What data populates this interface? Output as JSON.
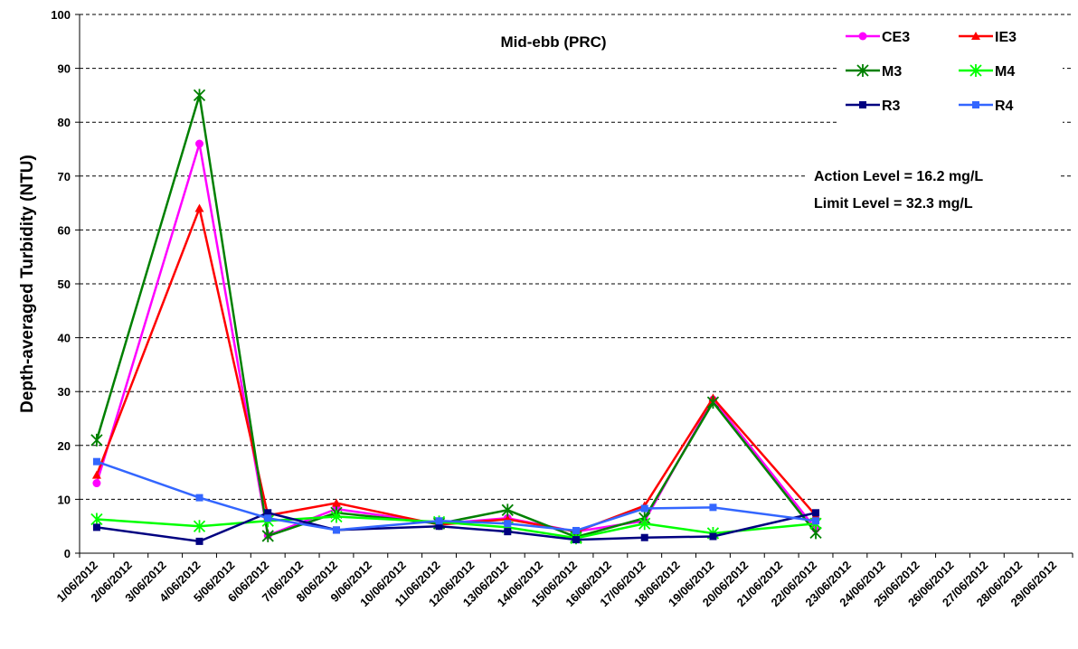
{
  "chart_data": {
    "type": "line",
    "title": "Mid-ebb (PRC)",
    "y_label": "Depth-averaged Turbidity (NTU)",
    "annotations": [
      "Action Level = 16.2 mg/L",
      "Limit Level = 32.3 mg/L"
    ],
    "categories": [
      "1/06/2012",
      "2/06/2012",
      "3/06/2012",
      "4/06/2012",
      "5/06/2012",
      "6/06/2012",
      "7/06/2012",
      "8/06/2012",
      "9/06/2012",
      "10/06/2012",
      "11/06/2012",
      "12/06/2012",
      "13/06/2012",
      "14/06/2012",
      "15/06/2012",
      "16/06/2012",
      "17/06/2012",
      "18/06/2012",
      "19/06/2012",
      "20/06/2012",
      "21/06/2012",
      "22/06/2012",
      "23/06/2012",
      "24/06/2012",
      "25/06/2012",
      "26/06/2012",
      "27/06/2012",
      "28/06/2012",
      "29/06/2012"
    ],
    "ylim": [
      0,
      100
    ],
    "yticks": [
      0,
      10,
      20,
      30,
      40,
      50,
      60,
      70,
      80,
      90,
      100
    ],
    "grid": true,
    "series": [
      {
        "name": "CE3",
        "color": "#ff00ff",
        "marker": "circle",
        "x": [
          "1/06/2012",
          "4/06/2012",
          "6/06/2012",
          "8/06/2012",
          "11/06/2012",
          "13/06/2012",
          "15/06/2012",
          "17/06/2012",
          "19/06/2012",
          "22/06/2012"
        ],
        "values": [
          13,
          76,
          3.3,
          8.2,
          5.5,
          6.5,
          4,
          6,
          28.5,
          4.5
        ]
      },
      {
        "name": "IE3",
        "color": "#ff0000",
        "marker": "triangle",
        "x": [
          "1/06/2012",
          "4/06/2012",
          "6/06/2012",
          "8/06/2012",
          "11/06/2012",
          "13/06/2012",
          "15/06/2012",
          "17/06/2012",
          "19/06/2012",
          "22/06/2012"
        ],
        "values": [
          14.5,
          64,
          7,
          9.3,
          5.3,
          6.3,
          4,
          8.8,
          28.8,
          7
        ]
      },
      {
        "name": "M3",
        "color": "#008000",
        "marker": "star",
        "x": [
          "1/06/2012",
          "4/06/2012",
          "6/06/2012",
          "8/06/2012",
          "11/06/2012",
          "13/06/2012",
          "15/06/2012",
          "17/06/2012",
          "19/06/2012",
          "22/06/2012"
        ],
        "values": [
          21,
          85,
          3.2,
          7.5,
          5.5,
          8,
          3,
          6.5,
          28,
          3.8
        ]
      },
      {
        "name": "M4",
        "color": "#00ff00",
        "marker": "star",
        "x": [
          "1/06/2012",
          "4/06/2012",
          "6/06/2012",
          "8/06/2012",
          "11/06/2012",
          "13/06/2012",
          "15/06/2012",
          "17/06/2012",
          "19/06/2012",
          "22/06/2012"
        ],
        "values": [
          6.3,
          5,
          6,
          6.8,
          5.8,
          4.8,
          2.8,
          5.5,
          3.7,
          5.5
        ]
      },
      {
        "name": "R3",
        "color": "#000080",
        "marker": "square",
        "x": [
          "1/06/2012",
          "4/06/2012",
          "6/06/2012",
          "8/06/2012",
          "11/06/2012",
          "13/06/2012",
          "15/06/2012",
          "17/06/2012",
          "19/06/2012",
          "22/06/2012"
        ],
        "values": [
          4.8,
          2.2,
          7.5,
          4.3,
          5,
          4,
          2.5,
          2.9,
          3.1,
          7.5
        ]
      },
      {
        "name": "R4",
        "color": "#3366ff",
        "marker": "square",
        "x": [
          "1/06/2012",
          "4/06/2012",
          "6/06/2012",
          "8/06/2012",
          "11/06/2012",
          "13/06/2012",
          "15/06/2012",
          "17/06/2012",
          "19/06/2012",
          "22/06/2012"
        ],
        "values": [
          17,
          10.3,
          6.5,
          4.3,
          6,
          5.5,
          4.2,
          8.3,
          8.5,
          6
        ]
      }
    ]
  }
}
